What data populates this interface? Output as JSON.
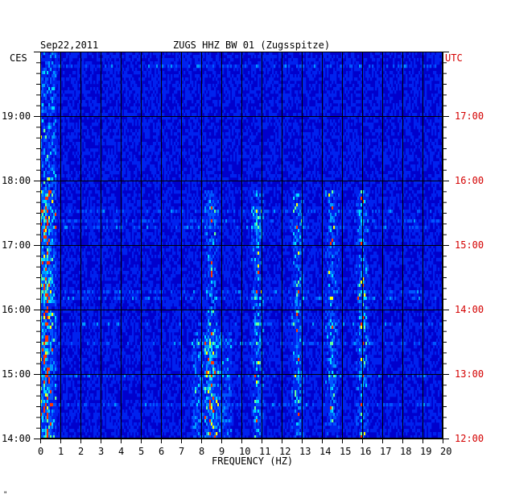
{
  "header": {
    "date": "Sep22,2011",
    "station": "ZUGS HHZ BW 01 (Zugsspitze)"
  },
  "left_axis_label": "CES",
  "right_axis_label": "UTC",
  "xlabel": "FREQUENCY (HZ)",
  "footer_mark": "\"",
  "colors": {
    "background": "#0000cc",
    "grid": "#000000",
    "utc_text": "#d40000"
  },
  "chart_data": {
    "type": "heatmap",
    "x_range": [
      0,
      20
    ],
    "x_ticks": [
      "0",
      "1",
      "2",
      "3",
      "4",
      "5",
      "6",
      "7",
      "8",
      "9",
      "10",
      "11",
      "12",
      "13",
      "14",
      "15",
      "16",
      "17",
      "18",
      "19",
      "20"
    ],
    "left_ticks": [
      "19:00",
      "18:00",
      "17:00",
      "16:00",
      "15:00",
      "14:00"
    ],
    "right_ticks": [
      "17:00",
      "16:00",
      "15:00",
      "14:00",
      "13:00",
      "12:00"
    ],
    "time_range_utc": [
      "12:00",
      "18:00"
    ],
    "hot_bands_hz": [
      0.3,
      8.5,
      10.8,
      12.8,
      14.5,
      16.0
    ]
  }
}
